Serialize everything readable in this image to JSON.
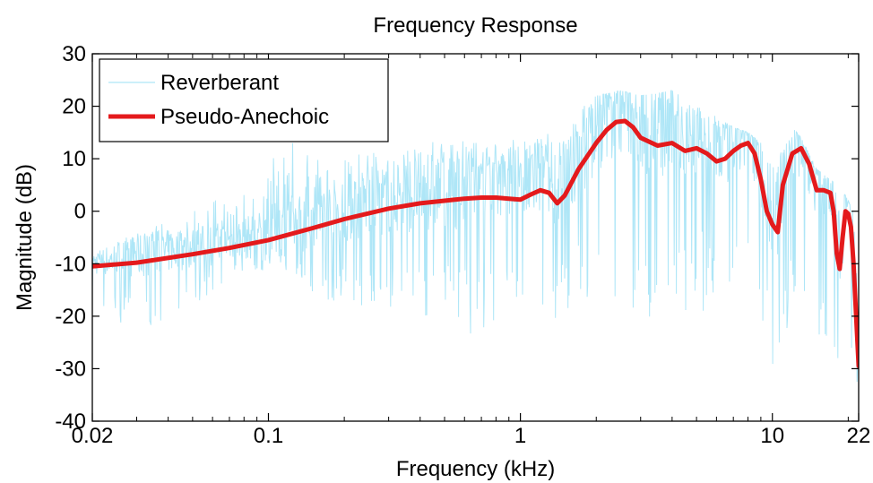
{
  "chart_data": {
    "type": "line",
    "title": "Frequency Response",
    "xlabel": "Frequency (kHz)",
    "ylabel": "Magnitude (dB)",
    "xscale": "log",
    "xlim": [
      0.02,
      22
    ],
    "ylim": [
      -40,
      30
    ],
    "xticks": [
      0.02,
      0.1,
      1,
      10,
      22
    ],
    "xtick_labels": [
      "0.02",
      "0.1",
      "1",
      "10",
      "22"
    ],
    "yticks": [
      -40,
      -30,
      -20,
      -10,
      0,
      10,
      20,
      30
    ],
    "ytick_labels": [
      "-40",
      "-30",
      "-20",
      "-10",
      "0",
      "10",
      "20",
      "30"
    ],
    "grid": false,
    "legend_position": "top-left",
    "series": [
      {
        "name": "Reverberant",
        "color": "#aee6f7",
        "style": "thin noisy line",
        "envelope_x": [
          0.02,
          0.03,
          0.05,
          0.08,
          0.1,
          0.12,
          0.15,
          0.2,
          0.3,
          0.5,
          0.7,
          1.0,
          1.3,
          1.6,
          2.0,
          2.5,
          3.0,
          4.0,
          5.0,
          6.0,
          7.0,
          8.0,
          9.0,
          10.0,
          11.0,
          12.0,
          13.0,
          15.0,
          17.0,
          18.0,
          19.0,
          20.0,
          21.0,
          22.0
        ],
        "envelope_upper": [
          -8,
          -4,
          0,
          6,
          10,
          14,
          10,
          12,
          11,
          14,
          13,
          14,
          15,
          18,
          22,
          23,
          22,
          23,
          20,
          18,
          16,
          15,
          13,
          12,
          11,
          16,
          14,
          8,
          6,
          5,
          4,
          2,
          0,
          -10
        ],
        "envelope_lower": [
          -18,
          -23,
          -18,
          -12,
          -12,
          -12,
          -16,
          -18,
          -20,
          -22,
          -24,
          -18,
          -21,
          -20,
          -18,
          -20,
          -22,
          -20,
          -18,
          -22,
          -20,
          -22,
          -24,
          -30,
          -28,
          -26,
          -25,
          -24,
          -24,
          -28,
          -30,
          -30,
          -36,
          -40
        ]
      },
      {
        "name": "Pseudo-Anechoic",
        "color": "#e41a1c",
        "style": "thick line",
        "x": [
          0.02,
          0.03,
          0.05,
          0.07,
          0.1,
          0.15,
          0.2,
          0.3,
          0.4,
          0.5,
          0.6,
          0.7,
          0.8,
          0.9,
          1.0,
          1.1,
          1.2,
          1.3,
          1.4,
          1.5,
          1.7,
          2.0,
          2.2,
          2.4,
          2.6,
          2.8,
          3.0,
          3.5,
          4.0,
          4.5,
          5.0,
          5.5,
          6.0,
          6.5,
          7.0,
          7.5,
          8.0,
          8.5,
          9.0,
          9.5,
          10.0,
          10.5,
          11.0,
          12.0,
          13.0,
          14.0,
          15.0,
          16.0,
          17.0,
          17.5,
          18.0,
          18.5,
          19.0,
          19.5,
          20.0,
          20.5,
          21.0,
          21.5,
          22.0
        ],
        "y": [
          -10.5,
          -9.8,
          -8.2,
          -7.0,
          -5.5,
          -3.2,
          -1.5,
          0.5,
          1.5,
          2.0,
          2.4,
          2.6,
          2.6,
          2.4,
          2.2,
          3.2,
          4.0,
          3.5,
          1.5,
          3.0,
          8.0,
          13.0,
          15.5,
          17.0,
          17.2,
          16.0,
          14.0,
          12.5,
          13.0,
          11.5,
          12.0,
          11.0,
          9.5,
          10.0,
          11.5,
          12.5,
          13.0,
          11.0,
          6.0,
          0.0,
          -2.5,
          -4.0,
          5.0,
          11.0,
          12.0,
          9.0,
          4.0,
          4.0,
          3.5,
          0.0,
          -8.0,
          -11.0,
          -5.0,
          0.0,
          -0.5,
          -3.0,
          -10.0,
          -20.0,
          -29.5
        ]
      }
    ]
  }
}
